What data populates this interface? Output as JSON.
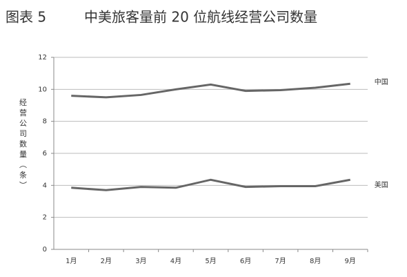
{
  "chart_data": {
    "type": "line",
    "figure_label": "图表 5",
    "title": "中美旅客量前 20 位航线经营公司数量",
    "y_label": "经营公司数量（条）",
    "categories": [
      "1月",
      "2月",
      "3月",
      "4月",
      "5月",
      "6月",
      "7月",
      "8月",
      "9月"
    ],
    "series": [
      {
        "name": "中国",
        "color": "#666666",
        "values": [
          9.6,
          9.5,
          9.65,
          10.0,
          10.3,
          9.9,
          9.95,
          10.1,
          10.35
        ]
      },
      {
        "name": "美国",
        "color": "#666666",
        "values": [
          3.85,
          3.7,
          3.9,
          3.85,
          4.35,
          3.9,
          3.95,
          3.95,
          4.35
        ]
      }
    ],
    "ylim": [
      0,
      12
    ],
    "yticks": [
      0,
      2,
      4,
      6,
      8,
      10,
      12
    ],
    "grid": true
  }
}
